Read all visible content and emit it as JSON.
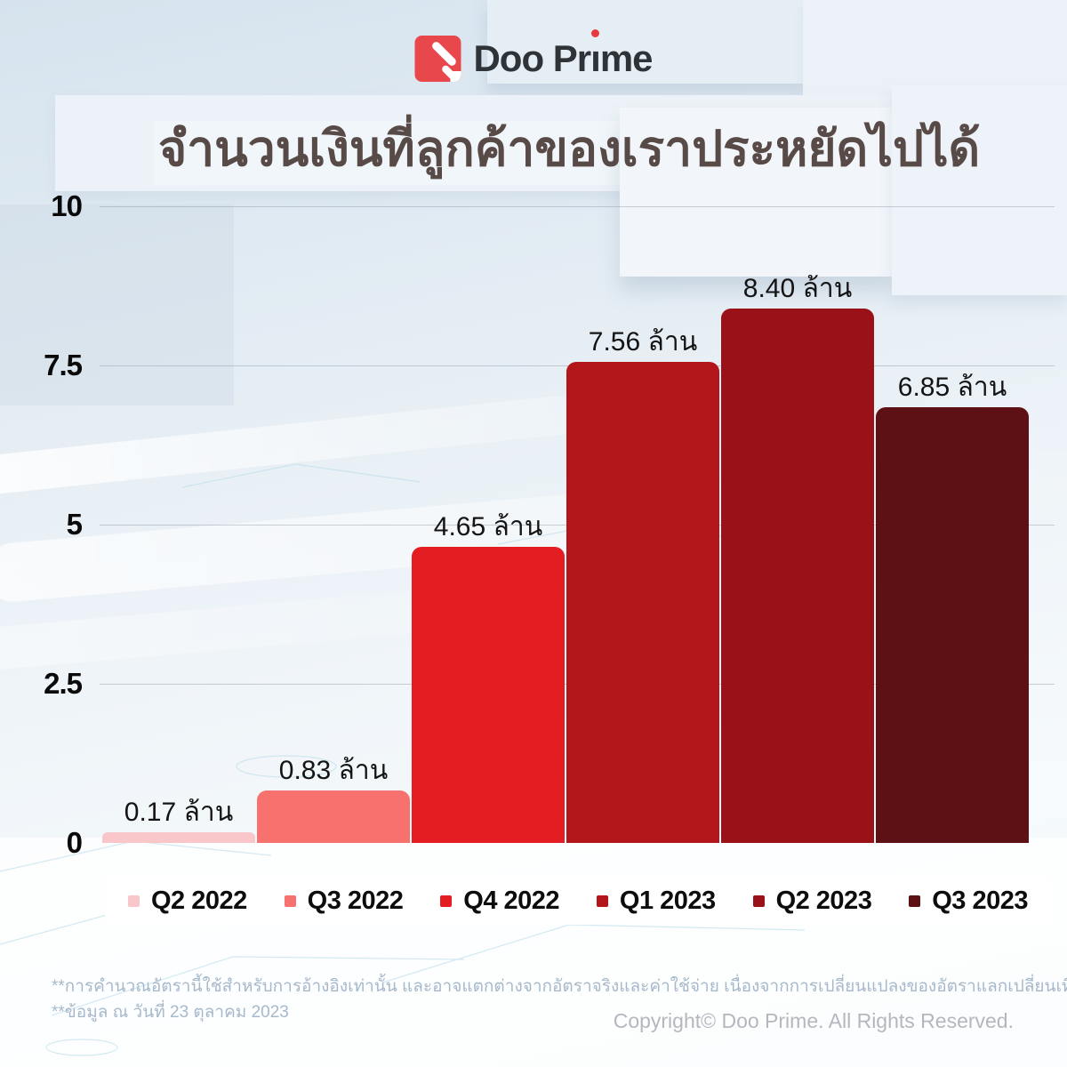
{
  "logo": {
    "text_pre": "Doo Pr",
    "text_i": "ı",
    "text_post": "me",
    "full_name": "Doo Prime",
    "icon_color": "#e8484c",
    "i_dot_color": "#e8393f"
  },
  "chart_data": {
    "type": "bar",
    "title": "จำนวนเงินที่ลูกค้าของเราประหยัดไปได้",
    "categories": [
      "Q2 2022",
      "Q3 2022",
      "Q4 2022",
      "Q1 2023",
      "Q2 2023",
      "Q3 2023"
    ],
    "values": [
      0.17,
      0.83,
      4.65,
      7.56,
      8.4,
      6.85
    ],
    "value_labels": [
      "0.17 ล้าน",
      "0.83 ล้าน",
      "4.65 ล้าน",
      "7.56 ล้าน",
      "8.40 ล้าน",
      "6.85 ล้าน"
    ],
    "unit": "ล้าน",
    "bar_colors": [
      "#f9c6c9",
      "#f7716f",
      "#e41d23",
      "#b2161b",
      "#9a1117",
      "#5d1114"
    ],
    "y_ticks": [
      "10",
      "7.5",
      "5",
      "2.5",
      "0"
    ],
    "ylim": [
      0,
      10
    ],
    "grid": true,
    "legend_position": "bottom"
  },
  "footnotes": {
    "line1": "**การคำนวณอัตรานี้ใช้สำหรับการอ้างอิงเท่านั้น และอาจแตกต่างจากอัตราจริงและค่าใช้จ่าย เนื่องจากการเปลี่ยนแปลงของอัตราแลกเปลี่ยนเทียบกับดอลลาร์สหรัฐ",
    "line2": "**ข้อมูล ณ วันที่ 23 ตุลาคม 2023"
  },
  "copyright": "Copyright© Doo Prime. All Rights Reserved."
}
